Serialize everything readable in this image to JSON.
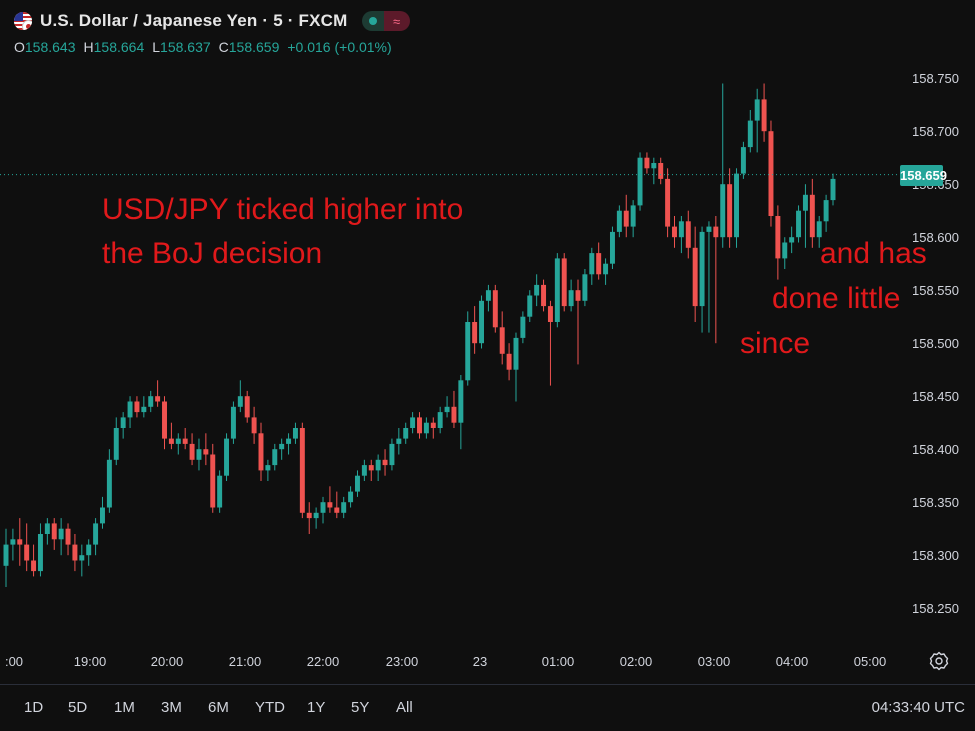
{
  "header": {
    "symbol_title": "U.S. Dollar / Japanese Yen · 5 · FXCM",
    "delay_glyph": "≈"
  },
  "ohlc": {
    "open_key": "O",
    "open": "158.643",
    "high_key": "H",
    "high": "158.664",
    "low_key": "L",
    "low": "158.637",
    "close_key": "C",
    "close": "158.659",
    "change": "+0.016 (+0.01%)"
  },
  "price_label": "158.659",
  "annotations": {
    "left_line1": "USD/JPY ticked higher into",
    "left_line2": "the BoJ decision",
    "right_line1": "and has",
    "right_line2": "done little",
    "right_line3": "since"
  },
  "bottom": {
    "ranges": [
      "1D",
      "5D",
      "1M",
      "3M",
      "6M",
      "YTD",
      "1Y",
      "5Y",
      "All"
    ],
    "clock": "04:33:40 UTC"
  },
  "colors": {
    "up": "#26a69a",
    "down": "#ef5350",
    "background": "#0f0f0f",
    "annotation": "#e0191b"
  },
  "chart_data": {
    "type": "candlestick",
    "ylim": [
      158.22,
      158.77
    ],
    "y_ticks": [
      "158.750",
      "158.700",
      "158.650",
      "158.600",
      "158.550",
      "158.500",
      "158.450",
      "158.400",
      "158.350",
      "158.300",
      "158.250"
    ],
    "x_ticks": [
      ":00",
      "19:00",
      "20:00",
      "21:00",
      "22:00",
      "23:00",
      "23",
      "01:00",
      "02:00",
      "03:00",
      "04:00",
      "05:00"
    ],
    "last_price": 158.659,
    "candles": [
      [
        158.29,
        158.325,
        158.27,
        158.31
      ],
      [
        158.31,
        158.325,
        158.295,
        158.315
      ],
      [
        158.315,
        158.335,
        158.29,
        158.31
      ],
      [
        158.31,
        158.33,
        158.285,
        158.295
      ],
      [
        158.295,
        158.31,
        158.28,
        158.285
      ],
      [
        158.285,
        158.33,
        158.28,
        158.32
      ],
      [
        158.32,
        158.335,
        158.31,
        158.33
      ],
      [
        158.33,
        158.335,
        158.305,
        158.315
      ],
      [
        158.315,
        158.335,
        158.3,
        158.325
      ],
      [
        158.325,
        158.33,
        158.3,
        158.31
      ],
      [
        158.31,
        158.32,
        158.285,
        158.295
      ],
      [
        158.295,
        158.31,
        158.28,
        158.3
      ],
      [
        158.3,
        158.315,
        158.29,
        158.31
      ],
      [
        158.31,
        158.335,
        158.3,
        158.33
      ],
      [
        158.33,
        158.355,
        158.325,
        158.345
      ],
      [
        158.345,
        158.4,
        158.34,
        158.39
      ],
      [
        158.39,
        158.43,
        158.385,
        158.42
      ],
      [
        158.42,
        158.435,
        158.41,
        158.43
      ],
      [
        158.43,
        158.45,
        158.42,
        158.445
      ],
      [
        158.445,
        158.45,
        158.43,
        158.435
      ],
      [
        158.435,
        158.45,
        158.43,
        158.44
      ],
      [
        158.44,
        158.455,
        158.435,
        158.45
      ],
      [
        158.45,
        158.465,
        158.44,
        158.445
      ],
      [
        158.445,
        158.45,
        158.4,
        158.41
      ],
      [
        158.41,
        158.425,
        158.4,
        158.405
      ],
      [
        158.405,
        158.415,
        158.395,
        158.41
      ],
      [
        158.41,
        158.42,
        158.4,
        158.405
      ],
      [
        158.405,
        158.415,
        158.385,
        158.39
      ],
      [
        158.39,
        158.41,
        158.38,
        158.4
      ],
      [
        158.4,
        158.415,
        158.385,
        158.395
      ],
      [
        158.395,
        158.405,
        158.34,
        158.345
      ],
      [
        158.345,
        158.38,
        158.34,
        158.375
      ],
      [
        158.375,
        158.415,
        158.37,
        158.41
      ],
      [
        158.41,
        158.445,
        158.405,
        158.44
      ],
      [
        158.44,
        158.465,
        158.435,
        158.45
      ],
      [
        158.45,
        158.455,
        158.425,
        158.43
      ],
      [
        158.43,
        158.44,
        158.405,
        158.415
      ],
      [
        158.415,
        158.425,
        158.37,
        158.38
      ],
      [
        158.38,
        158.39,
        158.37,
        158.385
      ],
      [
        158.385,
        158.405,
        158.38,
        158.4
      ],
      [
        158.4,
        158.41,
        158.39,
        158.405
      ],
      [
        158.405,
        158.415,
        158.395,
        158.41
      ],
      [
        158.41,
        158.425,
        158.405,
        158.42
      ],
      [
        158.42,
        158.425,
        158.335,
        158.34
      ],
      [
        158.34,
        158.35,
        158.32,
        158.335
      ],
      [
        158.335,
        158.345,
        158.325,
        158.34
      ],
      [
        158.34,
        158.355,
        158.33,
        158.35
      ],
      [
        158.35,
        158.365,
        158.34,
        158.345
      ],
      [
        158.345,
        158.36,
        158.335,
        158.34
      ],
      [
        158.34,
        158.355,
        158.335,
        158.35
      ],
      [
        158.35,
        158.365,
        158.345,
        158.36
      ],
      [
        158.36,
        158.38,
        158.355,
        158.375
      ],
      [
        158.375,
        158.39,
        158.37,
        158.385
      ],
      [
        158.385,
        158.39,
        158.37,
        158.38
      ],
      [
        158.38,
        158.395,
        158.37,
        158.39
      ],
      [
        158.39,
        158.4,
        158.375,
        158.385
      ],
      [
        158.385,
        158.41,
        158.38,
        158.405
      ],
      [
        158.405,
        158.42,
        158.395,
        158.41
      ],
      [
        158.41,
        158.425,
        158.405,
        158.42
      ],
      [
        158.42,
        158.435,
        158.415,
        158.43
      ],
      [
        158.43,
        158.435,
        158.41,
        158.415
      ],
      [
        158.415,
        158.43,
        158.41,
        158.425
      ],
      [
        158.425,
        158.43,
        158.41,
        158.42
      ],
      [
        158.42,
        158.44,
        158.415,
        158.435
      ],
      [
        158.435,
        158.45,
        158.43,
        158.44
      ],
      [
        158.44,
        158.455,
        158.42,
        158.425
      ],
      [
        158.425,
        158.47,
        158.4,
        158.465
      ],
      [
        158.465,
        158.53,
        158.46,
        158.52
      ],
      [
        158.52,
        158.535,
        158.49,
        158.5
      ],
      [
        158.5,
        158.545,
        158.495,
        158.54
      ],
      [
        158.54,
        158.555,
        158.53,
        158.55
      ],
      [
        158.55,
        158.555,
        158.51,
        158.515
      ],
      [
        158.515,
        158.53,
        158.48,
        158.49
      ],
      [
        158.49,
        158.5,
        158.465,
        158.475
      ],
      [
        158.475,
        158.51,
        158.445,
        158.505
      ],
      [
        158.505,
        158.53,
        158.5,
        158.525
      ],
      [
        158.525,
        158.55,
        158.52,
        158.545
      ],
      [
        158.545,
        158.565,
        158.535,
        158.555
      ],
      [
        158.555,
        158.56,
        158.53,
        158.535
      ],
      [
        158.535,
        158.54,
        158.46,
        158.52
      ],
      [
        158.52,
        158.585,
        158.515,
        158.58
      ],
      [
        158.58,
        158.585,
        158.53,
        158.535
      ],
      [
        158.535,
        158.56,
        158.53,
        158.55
      ],
      [
        158.55,
        158.56,
        158.48,
        158.54
      ],
      [
        158.54,
        158.57,
        158.535,
        158.565
      ],
      [
        158.565,
        158.59,
        158.555,
        158.585
      ],
      [
        158.585,
        158.595,
        158.56,
        158.565
      ],
      [
        158.565,
        158.58,
        158.555,
        158.575
      ],
      [
        158.575,
        158.61,
        158.57,
        158.605
      ],
      [
        158.605,
        158.63,
        158.6,
        158.625
      ],
      [
        158.625,
        158.64,
        158.6,
        158.61
      ],
      [
        158.61,
        158.635,
        158.6,
        158.63
      ],
      [
        158.63,
        158.68,
        158.625,
        158.675
      ],
      [
        158.675,
        158.68,
        158.66,
        158.665
      ],
      [
        158.665,
        158.675,
        158.65,
        158.67
      ],
      [
        158.67,
        158.675,
        158.65,
        158.655
      ],
      [
        158.655,
        158.665,
        158.6,
        158.61
      ],
      [
        158.61,
        158.62,
        158.59,
        158.6
      ],
      [
        158.6,
        158.62,
        158.585,
        158.615
      ],
      [
        158.615,
        158.625,
        158.58,
        158.59
      ],
      [
        158.59,
        158.61,
        158.52,
        158.535
      ],
      [
        158.535,
        158.61,
        158.51,
        158.605
      ],
      [
        158.605,
        158.615,
        158.51,
        158.61
      ],
      [
        158.61,
        158.62,
        158.5,
        158.6
      ],
      [
        158.6,
        158.745,
        158.59,
        158.65
      ],
      [
        158.65,
        158.665,
        158.59,
        158.6
      ],
      [
        158.6,
        158.665,
        158.59,
        158.66
      ],
      [
        158.66,
        158.69,
        158.655,
        158.685
      ],
      [
        158.685,
        158.72,
        158.68,
        158.71
      ],
      [
        158.71,
        158.74,
        158.68,
        158.73
      ],
      [
        158.73,
        158.745,
        158.69,
        158.7
      ],
      [
        158.7,
        158.71,
        158.61,
        158.62
      ],
      [
        158.62,
        158.63,
        158.56,
        158.58
      ],
      [
        158.58,
        158.6,
        158.57,
        158.595
      ],
      [
        158.595,
        158.61,
        158.585,
        158.6
      ],
      [
        158.6,
        158.63,
        158.595,
        158.625
      ],
      [
        158.625,
        158.65,
        158.59,
        158.64
      ],
      [
        158.64,
        158.655,
        158.59,
        158.6
      ],
      [
        158.6,
        158.62,
        158.59,
        158.615
      ],
      [
        158.615,
        158.64,
        158.605,
        158.635
      ],
      [
        158.635,
        158.66,
        158.63,
        158.655
      ]
    ]
  }
}
